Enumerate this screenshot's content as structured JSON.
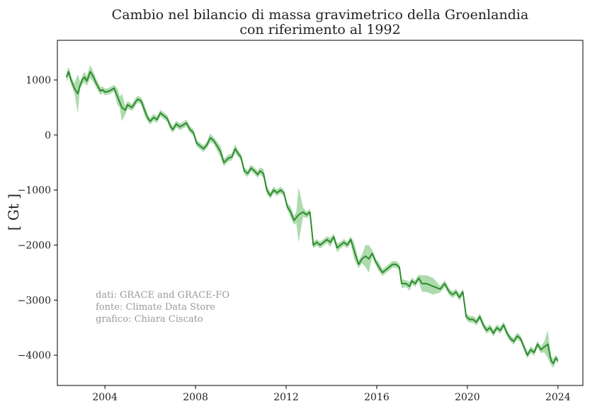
{
  "chart_data": {
    "type": "line",
    "title": "Cambio nel bilancio di massa gravimetrico della Groenlandia con riferimento al 1992",
    "title_lines": [
      "Cambio nel bilancio di massa gravimetrico della Groenlandia",
      "con riferimento al 1992"
    ],
    "xlabel": "",
    "ylabel": "[ Gt ]",
    "xlim": [
      2001.9,
      2025.1
    ],
    "ylim": [
      -4550,
      1720
    ],
    "xticks": [
      2004,
      2008,
      2012,
      2016,
      2020,
      2024
    ],
    "yticks": [
      1000,
      0,
      -1000,
      -2000,
      -3000,
      -4000
    ],
    "ytick_labels": [
      "1000",
      "0",
      "−1000",
      "−2000",
      "−3000",
      "−4000"
    ],
    "grid": false,
    "legend": "none",
    "line_color": "#2e8b2e",
    "band_color": "#5cb85c",
    "annotation": [
      "dati: GRACE and GRACE-FO",
      "fonte: Climate Data Store",
      "grafico: Chiara Ciscato"
    ],
    "series": [
      {
        "x": [
          2002.3,
          2002.4,
          2002.5,
          2002.65,
          2002.8,
          2002.9,
          2003.0,
          2003.1,
          2003.2,
          2003.35,
          2003.5,
          2003.6,
          2003.8,
          2003.9,
          2004.0,
          2004.2,
          2004.4,
          2004.55,
          2004.65,
          2004.75,
          2004.9,
          2005.0,
          2005.2,
          2005.35,
          2005.45,
          2005.6,
          2005.75,
          2005.9,
          2006.0,
          2006.15,
          2006.3,
          2006.45,
          2006.6,
          2006.75,
          2006.9,
          2007.0,
          2007.15,
          2007.3,
          2007.45,
          2007.6,
          2007.75,
          2007.9,
          2008.05,
          2008.2,
          2008.35,
          2008.5,
          2008.65,
          2008.8,
          2008.95,
          2009.1,
          2009.25,
          2009.45,
          2009.6,
          2009.75,
          2009.9,
          2010.0,
          2010.15,
          2010.3,
          2010.45,
          2010.6,
          2010.75,
          2010.85,
          2011.0,
          2011.15,
          2011.3,
          2011.45,
          2011.6,
          2011.75,
          2011.9,
          2012.05,
          2012.2,
          2012.35,
          2012.45,
          2012.55,
          2012.75,
          2012.9,
          2013.05,
          2013.2,
          2013.35,
          2013.5,
          2013.65,
          2013.8,
          2013.95,
          2014.1,
          2014.25,
          2014.4,
          2014.55,
          2014.7,
          2014.85,
          2015.0,
          2015.2,
          2015.35,
          2015.5,
          2015.65,
          2015.8,
          2015.95,
          2016.1,
          2016.25,
          2016.4,
          2016.55,
          2016.7,
          2016.85,
          2017.0,
          2017.1,
          2017.3,
          2017.45,
          2017.55,
          2017.7,
          2017.85,
          2018.0,
          2018.2,
          2018.5,
          2018.8,
          2019.0,
          2019.2,
          2019.35,
          2019.5,
          2019.65,
          2019.8,
          2019.95,
          2020.1,
          2020.25,
          2020.4,
          2020.55,
          2020.7,
          2020.85,
          2021.0,
          2021.15,
          2021.3,
          2021.45,
          2021.6,
          2021.75,
          2021.9,
          2022.05,
          2022.2,
          2022.35,
          2022.5,
          2022.65,
          2022.8,
          2022.95,
          2023.1,
          2023.25,
          2023.4,
          2023.55,
          2023.7,
          2023.8,
          2023.9,
          2024.0
        ],
        "values": [
          1050,
          1150,
          1000,
          850,
          750,
          900,
          1000,
          1050,
          980,
          1150,
          1050,
          950,
          800,
          820,
          780,
          800,
          850,
          700,
          600,
          500,
          450,
          550,
          500,
          600,
          650,
          620,
          450,
          300,
          250,
          320,
          280,
          400,
          350,
          300,
          150,
          100,
          200,
          150,
          180,
          220,
          100,
          50,
          -150,
          -200,
          -250,
          -180,
          -50,
          -100,
          -200,
          -300,
          -500,
          -420,
          -400,
          -250,
          -350,
          -400,
          -650,
          -700,
          -600,
          -650,
          -720,
          -650,
          -700,
          -1000,
          -1100,
          -1000,
          -1050,
          -1000,
          -1050,
          -1300,
          -1400,
          -1550,
          -1500,
          -1450,
          -1400,
          -1450,
          -1400,
          -2000,
          -1950,
          -2000,
          -1950,
          -1900,
          -1950,
          -1850,
          -2050,
          -2000,
          -1950,
          -2000,
          -1900,
          -2100,
          -2350,
          -2250,
          -2200,
          -2250,
          -2150,
          -2300,
          -2400,
          -2500,
          -2450,
          -2400,
          -2350,
          -2350,
          -2400,
          -2700,
          -2700,
          -2750,
          -2650,
          -2700,
          -2600,
          -2700,
          -2700,
          -2750,
          -2800,
          -2700,
          -2850,
          -2900,
          -2850,
          -2950,
          -2850,
          -3300,
          -3350,
          -3350,
          -3400,
          -3300,
          -3450,
          -3550,
          -3500,
          -3600,
          -3500,
          -3550,
          -3450,
          -3600,
          -3700,
          -3750,
          -3650,
          -3700,
          -3850,
          -4000,
          -3900,
          -3950,
          -3800,
          -3900,
          -3850,
          -3800,
          -4100,
          -4150,
          -4050,
          -4100
        ],
        "spread": [
          80,
          90,
          70,
          90,
          350,
          70,
          80,
          100,
          90,
          120,
          90,
          80,
          70,
          60,
          60,
          60,
          60,
          150,
          100,
          250,
          80,
          70,
          60,
          70,
          60,
          60,
          100,
          60,
          60,
          60,
          60,
          60,
          60,
          60,
          60,
          60,
          60,
          60,
          60,
          60,
          60,
          60,
          60,
          60,
          60,
          60,
          80,
          60,
          80,
          100,
          70,
          60,
          60,
          80,
          60,
          60,
          60,
          60,
          60,
          60,
          60,
          60,
          80,
          80,
          60,
          60,
          60,
          60,
          60,
          60,
          100,
          80,
          100,
          500,
          80,
          60,
          60,
          60,
          60,
          60,
          60,
          60,
          80,
          60,
          80,
          60,
          60,
          60,
          60,
          150,
          70,
          80,
          200,
          250,
          60,
          60,
          80,
          60,
          60,
          60,
          60,
          60,
          60,
          80,
          60,
          80,
          60,
          60,
          60,
          150,
          150,
          150,
          60,
          60,
          60,
          60,
          60,
          60,
          60,
          60,
          60,
          60,
          60,
          60,
          60,
          60,
          60,
          60,
          60,
          60,
          60,
          60,
          60,
          60,
          60,
          60,
          60,
          60,
          60,
          60,
          60,
          60,
          100,
          250,
          80,
          80,
          60,
          60,
          80,
          60
        ]
      }
    ]
  }
}
